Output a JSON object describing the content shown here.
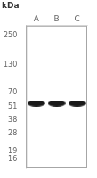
{
  "chart_data": {
    "type": "scatter",
    "ylabel": "kDa",
    "categories": [
      "A",
      "B",
      "C"
    ],
    "values": [
      55,
      55,
      55
    ],
    "color": "#1a1a1a",
    "marker": "ellipse",
    "log": "y",
    "ylim": [
      13,
      310
    ],
    "yticks": [
      250,
      130,
      70,
      51,
      38,
      28,
      19,
      16
    ],
    "grid": false
  }
}
